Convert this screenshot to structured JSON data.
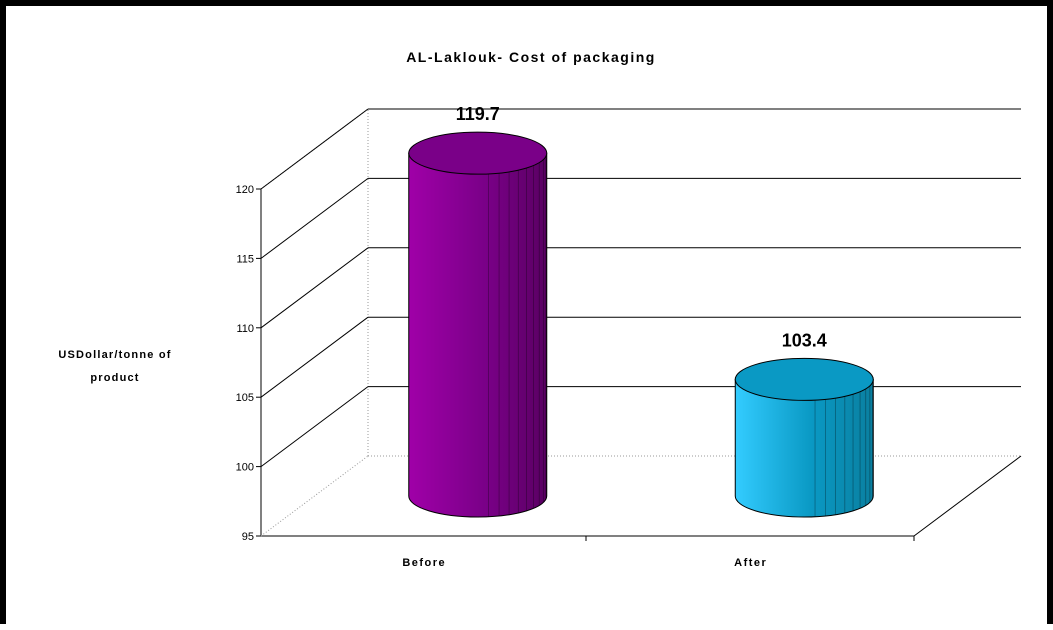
{
  "chart_data": {
    "type": "bar",
    "title": "AL-Laklouk- Cost of packaging",
    "ylabel_lines": [
      "USDollar/tonne of",
      "product"
    ],
    "categories": [
      "Before",
      "After"
    ],
    "values": [
      119.7,
      103.4
    ],
    "value_labels": [
      "119.7",
      "103.4"
    ],
    "ylim": [
      95,
      120
    ],
    "yticks": [
      95,
      100,
      105,
      110,
      115,
      120
    ],
    "ytick_labels": [
      "95",
      "100",
      "105",
      "110",
      "115",
      "120"
    ],
    "grid": true,
    "legend": "none",
    "colors": {
      "before_light": "#a000a8",
      "before_dark": "#5a0063",
      "before_top": "#7a0088",
      "after_light": "#33ccff",
      "after_dark": "#0a7fa0",
      "after_top": "#0a99c4"
    }
  }
}
